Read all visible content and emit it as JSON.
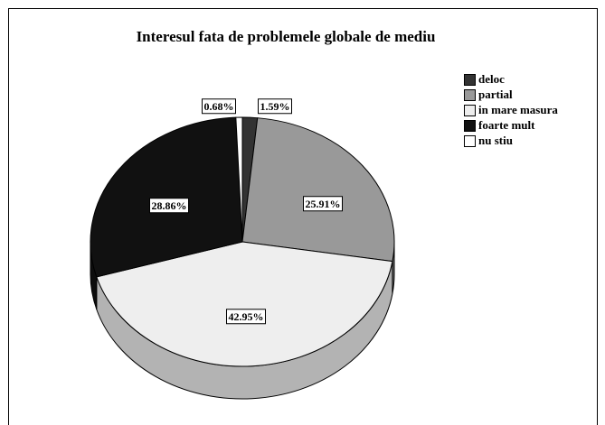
{
  "chart_data": {
    "type": "pie",
    "title": "Interesul fata de problemele globale de mediu",
    "categories": [
      "deloc",
      "partial",
      "in mare masura",
      "foarte mult",
      "nu stiu"
    ],
    "values": [
      1.59,
      25.91,
      42.95,
      28.86,
      0.68
    ],
    "value_labels": [
      "1.59%",
      "25.91%",
      "42.95%",
      "28.86%",
      "0.68%"
    ],
    "colors": [
      "#333333",
      "#999999",
      "#eeeeee",
      "#111111",
      "#ffffff"
    ],
    "legend": "right"
  }
}
